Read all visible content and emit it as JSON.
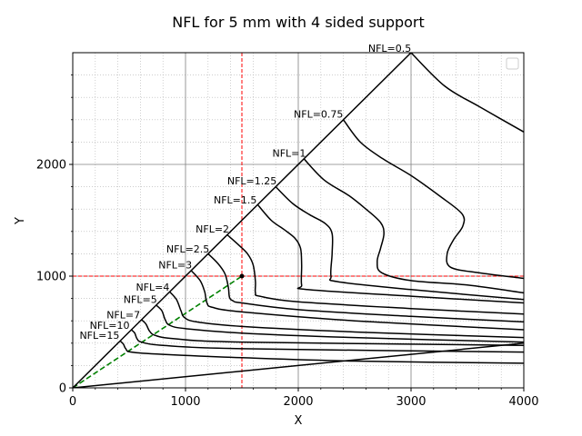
{
  "chart_data": {
    "type": "line",
    "title": "NFL for 5 mm with 4 sided support",
    "xlabel": "X",
    "ylabel": "Y",
    "xlim": [
      0,
      4000
    ],
    "ylim": [
      0,
      3000
    ],
    "xticks": [
      0,
      1000,
      2000,
      3000,
      4000
    ],
    "yticks": [
      0,
      1000,
      2000
    ],
    "grid": true,
    "minor_grid": true,
    "legend": "top-right (empty)",
    "colors": {
      "contour": "#000000",
      "crosshair": "#ff0000",
      "diagonal": "#008000",
      "major_grid": "#808080",
      "minor_grid": "#b0b0b0"
    },
    "boundary": {
      "diagonal": [
        [
          0,
          0
        ],
        [
          3000,
          3000
        ]
      ],
      "lower_edge": [
        [
          0,
          0
        ],
        [
          4000,
          400
        ]
      ]
    },
    "crosshair": {
      "x": 1500,
      "y": 1000
    },
    "marker": {
      "x": 1500,
      "y": 1000
    },
    "dashed_diagonal": [
      [
        0,
        0
      ],
      [
        1500,
        1000
      ]
    ],
    "contours": [
      {
        "label": "NFL=0.5",
        "points": [
          [
            3000,
            3000
          ],
          [
            3300,
            2700
          ],
          [
            3600,
            2520
          ],
          [
            4000,
            2290
          ]
        ]
      },
      {
        "label": "NFL=0.75",
        "points": [
          [
            2400,
            2400
          ],
          [
            2550,
            2200
          ],
          [
            2750,
            2050
          ],
          [
            3000,
            1900
          ],
          [
            3250,
            1720
          ],
          [
            3450,
            1560
          ],
          [
            3460,
            1450
          ],
          [
            3380,
            1330
          ],
          [
            3320,
            1200
          ],
          [
            3350,
            1080
          ],
          [
            3600,
            1030
          ],
          [
            4000,
            980
          ]
        ]
      },
      {
        "label": "NFL=1",
        "points": [
          [
            2050,
            2050
          ],
          [
            2230,
            1860
          ],
          [
            2450,
            1720
          ],
          [
            2600,
            1600
          ],
          [
            2730,
            1480
          ],
          [
            2760,
            1380
          ],
          [
            2730,
            1250
          ],
          [
            2700,
            1130
          ],
          [
            2740,
            1030
          ],
          [
            3000,
            960
          ],
          [
            3500,
            920
          ],
          [
            4000,
            850
          ]
        ]
      },
      {
        "label": "NFL=1.25",
        "points": [
          [
            1800,
            1800
          ],
          [
            1950,
            1650
          ],
          [
            2100,
            1550
          ],
          [
            2240,
            1470
          ],
          [
            2300,
            1380
          ],
          [
            2300,
            1200
          ],
          [
            2290,
            1000
          ],
          [
            2350,
            950
          ],
          [
            3000,
            880
          ],
          [
            4000,
            790
          ]
        ]
      },
      {
        "label": "NFL=1.5",
        "points": [
          [
            1640,
            1640
          ],
          [
            1760,
            1500
          ],
          [
            1870,
            1420
          ],
          [
            1970,
            1340
          ],
          [
            2020,
            1250
          ],
          [
            2030,
            1100
          ],
          [
            2030,
            920
          ],
          [
            2080,
            880
          ],
          [
            3000,
            820
          ],
          [
            4000,
            760
          ]
        ]
      },
      {
        "label": "NFL=2",
        "points": [
          [
            1370,
            1370
          ],
          [
            1470,
            1280
          ],
          [
            1550,
            1200
          ],
          [
            1600,
            1100
          ],
          [
            1620,
            950
          ],
          [
            1620,
            850
          ],
          [
            1660,
            820
          ],
          [
            2000,
            770
          ],
          [
            3000,
            710
          ],
          [
            4000,
            660
          ]
        ]
      },
      {
        "label": "NFL=2.5",
        "points": [
          [
            1200,
            1200
          ],
          [
            1290,
            1110
          ],
          [
            1350,
            1020
          ],
          [
            1380,
            900
          ],
          [
            1390,
            810
          ],
          [
            1420,
            780
          ],
          [
            1500,
            760
          ],
          [
            2000,
            700
          ],
          [
            3000,
            640
          ],
          [
            4000,
            590
          ]
        ]
      },
      {
        "label": "NFL=3",
        "points": [
          [
            1050,
            1050
          ],
          [
            1130,
            960
          ],
          [
            1170,
            860
          ],
          [
            1190,
            760
          ],
          [
            1240,
            720
          ],
          [
            1500,
            680
          ],
          [
            2500,
            600
          ],
          [
            4000,
            520
          ]
        ]
      },
      {
        "label": "NFL=4",
        "points": [
          [
            860,
            860
          ],
          [
            920,
            790
          ],
          [
            960,
            690
          ],
          [
            990,
            630
          ],
          [
            1100,
            590
          ],
          [
            1500,
            550
          ],
          [
            2500,
            500
          ],
          [
            4000,
            450
          ]
        ]
      },
      {
        "label": "NFL=5",
        "points": [
          [
            740,
            740
          ],
          [
            790,
            690
          ],
          [
            820,
            610
          ],
          [
            860,
            560
          ],
          [
            1000,
            530
          ],
          [
            1500,
            490
          ],
          [
            2500,
            450
          ],
          [
            4000,
            410
          ]
        ]
      },
      {
        "label": "NFL=7",
        "points": [
          [
            610,
            610
          ],
          [
            650,
            570
          ],
          [
            680,
            510
          ],
          [
            730,
            470
          ],
          [
            900,
            440
          ],
          [
            1500,
            410
          ],
          [
            4000,
            380
          ]
        ]
      },
      {
        "label": "NFL=10",
        "points": [
          [
            520,
            520
          ],
          [
            550,
            490
          ],
          [
            570,
            440
          ],
          [
            610,
            410
          ],
          [
            800,
            380
          ],
          [
            1500,
            350
          ],
          [
            4000,
            320
          ]
        ]
      },
      {
        "label": "NFL=15",
        "points": [
          [
            420,
            420
          ],
          [
            450,
            390
          ],
          [
            470,
            350
          ],
          [
            520,
            320
          ],
          [
            800,
            300
          ],
          [
            1500,
            270
          ],
          [
            2500,
            240
          ],
          [
            4000,
            220
          ]
        ]
      }
    ],
    "labels": [
      {
        "text": "NFL=0.5",
        "x": 2620,
        "y": 3010
      },
      {
        "text": "NFL=0.75",
        "x": 1960,
        "y": 2420
      },
      {
        "text": "NFL=1",
        "x": 1770,
        "y": 2070
      },
      {
        "text": "NFL=1.25",
        "x": 1370,
        "y": 1820
      },
      {
        "text": "NFL=1.5",
        "x": 1250,
        "y": 1650
      },
      {
        "text": "NFL=2",
        "x": 1090,
        "y": 1390
      },
      {
        "text": "NFL=2.5",
        "x": 830,
        "y": 1210
      },
      {
        "text": "NFL=3",
        "x": 760,
        "y": 1070
      },
      {
        "text": "NFL=4",
        "x": 560,
        "y": 870
      },
      {
        "text": "NFL=5",
        "x": 450,
        "y": 760
      },
      {
        "text": "NFL=7",
        "x": 300,
        "y": 620
      },
      {
        "text": "NFL=10",
        "x": 150,
        "y": 530
      },
      {
        "text": "NFL=15",
        "x": 60,
        "y": 440
      }
    ]
  }
}
